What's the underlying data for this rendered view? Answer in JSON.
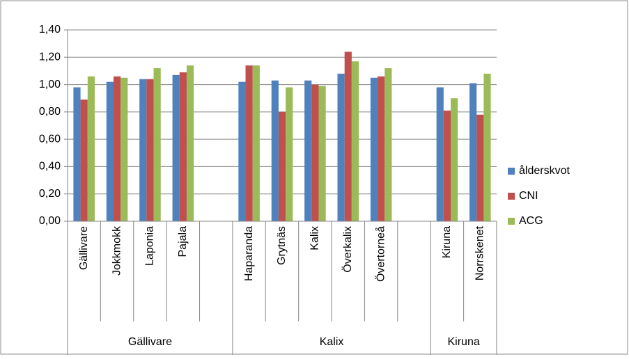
{
  "chart_data": {
    "type": "bar",
    "groups": [
      {
        "name": "Gällivare",
        "categories": [
          "Gällivare",
          "Jokkmokk",
          "Laponia",
          "Pajala",
          null
        ]
      },
      {
        "name": "Kalix",
        "categories": [
          "Haparanda",
          "Grytnäs",
          "Kalix",
          "Överkalix",
          "Övertorneå",
          null
        ]
      },
      {
        "name": "Kiruna",
        "categories": [
          "Kiruna",
          "Norrskenet"
        ]
      }
    ],
    "series": [
      {
        "name": "ålderskvot",
        "color": "#4f81bd",
        "values": [
          0.98,
          1.02,
          1.04,
          1.07,
          null,
          1.02,
          1.03,
          1.03,
          1.08,
          1.05,
          null,
          0.98,
          1.01
        ]
      },
      {
        "name": "CNI",
        "color": "#c0504d",
        "values": [
          0.89,
          1.06,
          1.04,
          1.09,
          null,
          1.14,
          0.8,
          1.0,
          1.24,
          1.06,
          null,
          0.81,
          0.78
        ]
      },
      {
        "name": "ACG",
        "color": "#9bbb59",
        "values": [
          1.06,
          1.05,
          1.12,
          1.14,
          null,
          1.14,
          0.98,
          0.99,
          1.17,
          1.12,
          null,
          0.9,
          1.08
        ]
      }
    ],
    "ylim": [
      0,
      1.4
    ],
    "yticks": [
      {
        "value": 0,
        "label": "0,00"
      },
      {
        "value": 0.2,
        "label": "0,20"
      },
      {
        "value": 0.4,
        "label": "0,40"
      },
      {
        "value": 0.6,
        "label": "0,60"
      },
      {
        "value": 0.8,
        "label": "0,80"
      },
      {
        "value": 1.0,
        "label": "1,00"
      },
      {
        "value": 1.2,
        "label": "1,20"
      },
      {
        "value": 1.4,
        "label": "1,40"
      }
    ],
    "grid": true,
    "legend": "right"
  }
}
